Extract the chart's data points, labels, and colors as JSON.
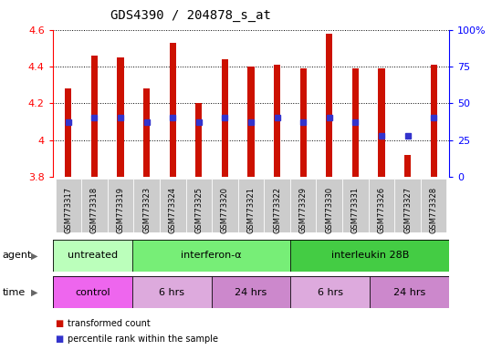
{
  "title": "GDS4390 / 204878_s_at",
  "samples": [
    "GSM773317",
    "GSM773318",
    "GSM773319",
    "GSM773323",
    "GSM773324",
    "GSM773325",
    "GSM773320",
    "GSM773321",
    "GSM773322",
    "GSM773329",
    "GSM773330",
    "GSM773331",
    "GSM773326",
    "GSM773327",
    "GSM773328"
  ],
  "transformed_counts": [
    4.28,
    4.46,
    4.45,
    4.28,
    4.53,
    4.2,
    4.44,
    4.4,
    4.41,
    4.39,
    4.58,
    4.39,
    4.39,
    3.92,
    4.41
  ],
  "percentile_ranks": [
    37,
    40,
    40,
    37,
    40,
    37,
    40,
    37,
    40,
    37,
    40,
    37,
    28,
    28,
    40
  ],
  "bar_bottom": 3.8,
  "ylim": [
    3.8,
    4.6
  ],
  "bar_color": "#cc1100",
  "dot_color": "#3333cc",
  "agent_groups": [
    {
      "label": "untreated",
      "start": 0,
      "end": 3,
      "color": "#bbffbb"
    },
    {
      "label": "interferon-α",
      "start": 3,
      "end": 9,
      "color": "#77ee77"
    },
    {
      "label": "interleukin 28B",
      "start": 9,
      "end": 15,
      "color": "#44cc44"
    }
  ],
  "time_groups": [
    {
      "label": "control",
      "start": 0,
      "end": 3,
      "color": "#ee66ee"
    },
    {
      "label": "6 hrs",
      "start": 3,
      "end": 6,
      "color": "#ddaadd"
    },
    {
      "label": "24 hrs",
      "start": 6,
      "end": 9,
      "color": "#cc88cc"
    },
    {
      "label": "6 hrs",
      "start": 9,
      "end": 12,
      "color": "#ddaadd"
    },
    {
      "label": "24 hrs",
      "start": 12,
      "end": 15,
      "color": "#cc88cc"
    }
  ],
  "yticks": [
    3.8,
    4.0,
    4.2,
    4.4,
    4.6
  ],
  "yticklabels": [
    "3.8",
    "4",
    "4.2",
    "4.4",
    "4.6"
  ],
  "right_ytick_percents": [
    0,
    25,
    50,
    75,
    100
  ],
  "right_yticklabels": [
    "0",
    "25",
    "50",
    "75",
    "100%"
  ],
  "background_color": "#ffffff",
  "plot_bg_color": "#ffffff",
  "xtick_bg_color": "#cccccc",
  "bar_width": 0.25
}
